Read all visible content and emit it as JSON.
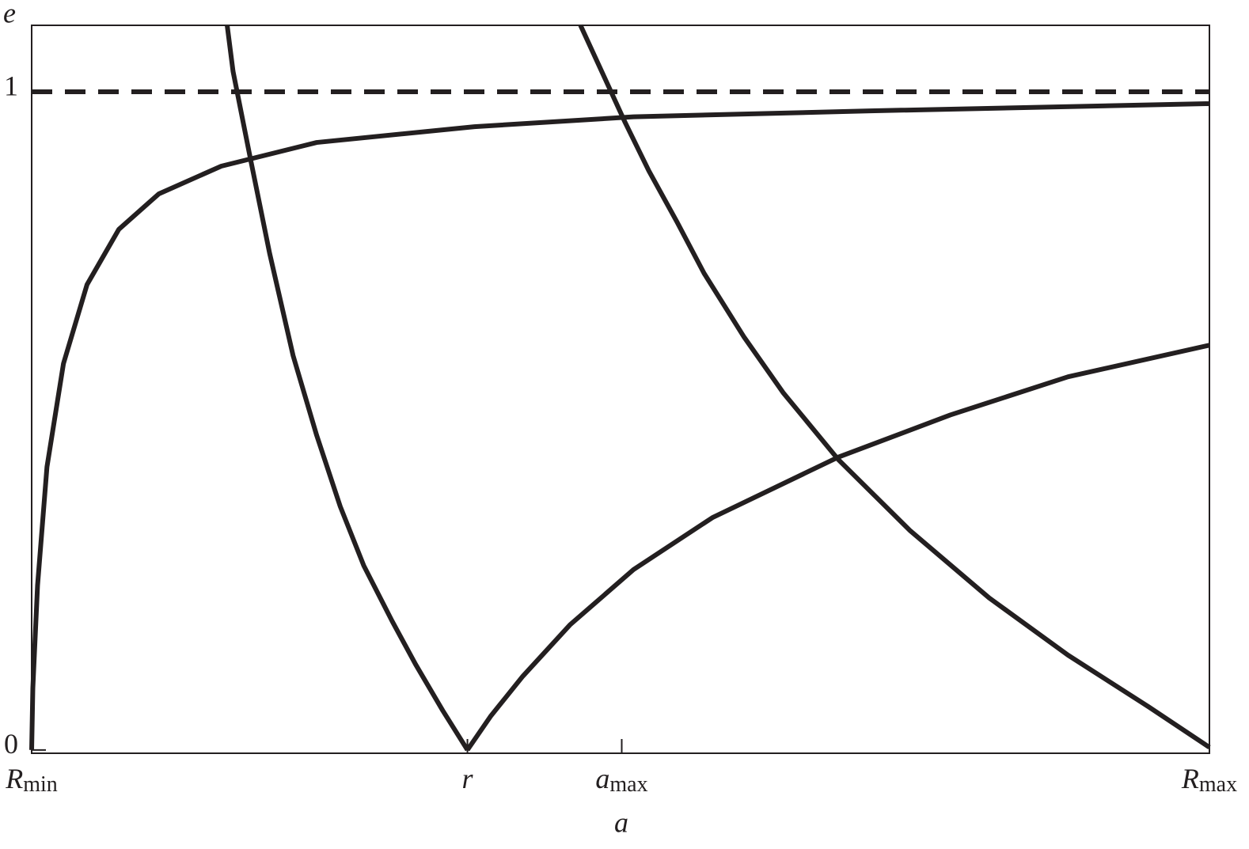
{
  "chart_data": {
    "type": "line",
    "x_label": "a",
    "y_label": "e",
    "xlim": [
      0,
      1
    ],
    "ylim": [
      -0.005,
      1.101
    ],
    "xticks": [
      {
        "value": 0,
        "label": "R",
        "subscript": "min"
      },
      {
        "value": 0.37,
        "label": "r"
      },
      {
        "value": 0.501,
        "label": "a",
        "subscript": "max"
      },
      {
        "value": 1,
        "label": "R",
        "subscript": "max"
      }
    ],
    "yticks": [
      0,
      1
    ],
    "series": [
      {
        "color": "#231f20",
        "dashed": true,
        "x": [
          0,
          1
        ],
        "values": [
          1,
          1
        ]
      },
      {
        "color": "#231f20",
        "dashed": false,
        "x": [
          0,
          0.001,
          0.005,
          0.013,
          0.027,
          0.047,
          0.074,
          0.108,
          0.161,
          0.242,
          0.376,
          0.511,
          0.712,
          1
        ],
        "values": [
          0,
          0.094,
          0.25,
          0.43,
          0.587,
          0.707,
          0.791,
          0.845,
          0.887,
          0.923,
          0.947,
          0.962,
          0.971,
          0.982
        ]
      },
      {
        "color": "#231f20",
        "dashed": false,
        "x": [
          0.166,
          0.171,
          0.185,
          0.202,
          0.222,
          0.242,
          0.262,
          0.282,
          0.306,
          0.326,
          0.349,
          0.37
        ],
        "values": [
          1.101,
          1.031,
          0.905,
          0.755,
          0.599,
          0.478,
          0.37,
          0.28,
          0.196,
          0.13,
          0.06,
          0
        ]
      },
      {
        "color": "#231f20",
        "dashed": false,
        "x": [
          0.37,
          0.39,
          0.417,
          0.457,
          0.511,
          0.578,
          0.685,
          0.78,
          0.88,
          1
        ],
        "values": [
          0,
          0.052,
          0.112,
          0.19,
          0.274,
          0.353,
          0.445,
          0.509,
          0.567,
          0.615
        ]
      },
      {
        "color": "#231f20",
        "dashed": false,
        "x": [
          0.466,
          0.484,
          0.504,
          0.524,
          0.548,
          0.571,
          0.605,
          0.638,
          0.685,
          0.746,
          0.813,
          0.88,
          0.948,
          1
        ],
        "values": [
          1.101,
          1.031,
          0.953,
          0.88,
          0.802,
          0.724,
          0.627,
          0.543,
          0.441,
          0.333,
          0.231,
          0.144,
          0.066,
          0.004
        ]
      }
    ]
  }
}
